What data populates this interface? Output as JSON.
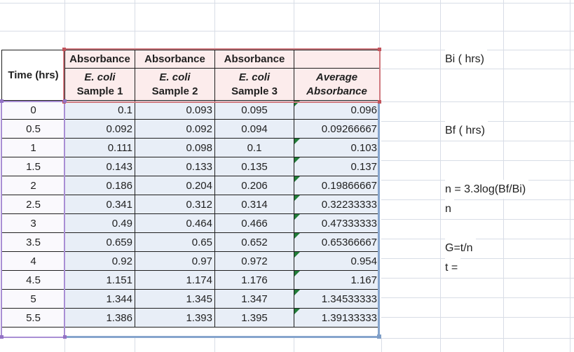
{
  "sheet": {
    "header": {
      "time_label": "Time (hrs)",
      "value_cols": [
        {
          "top": "Absorbance",
          "line1": "E. coli",
          "line2": "Sample 1"
        },
        {
          "top": "Absorbance",
          "line1": "E. coli",
          "line2": "Sample 2"
        },
        {
          "top": "Absorbance",
          "line1": "E. coli",
          "line2": "Sample 3"
        },
        {
          "top": "",
          "line1": "Average",
          "line2": "Absorbance"
        }
      ]
    },
    "rows": [
      {
        "time": "0",
        "s1": "0.1",
        "s2": "0.093",
        "s3": "0.095",
        "avg": "0.096",
        "flag": true
      },
      {
        "time": "0.5",
        "s1": "0.092",
        "s2": "0.092",
        "s3": "0.094",
        "avg": "0.09266667",
        "flag": false
      },
      {
        "time": "1",
        "s1": "0.111",
        "s2": "0.098",
        "s3": "0.1",
        "avg": "0.103",
        "flag": true
      },
      {
        "time": "1.5",
        "s1": "0.143",
        "s2": "0.133",
        "s3": "0.135",
        "avg": "0.137",
        "flag": true
      },
      {
        "time": "2",
        "s1": "0.186",
        "s2": "0.204",
        "s3": "0.206",
        "avg": "0.19866667",
        "flag": true
      },
      {
        "time": "2.5",
        "s1": "0.341",
        "s2": "0.312",
        "s3": "0.314",
        "avg": "0.32233333",
        "flag": true
      },
      {
        "time": "3",
        "s1": "0.49",
        "s2": "0.464",
        "s3": "0.466",
        "avg": "0.47333333",
        "flag": true
      },
      {
        "time": "3.5",
        "s1": "0.659",
        "s2": "0.65",
        "s3": "0.652",
        "avg": "0.65366667",
        "flag": true
      },
      {
        "time": "4",
        "s1": "0.92",
        "s2": "0.97",
        "s3": "0.972",
        "avg": "0.954",
        "flag": true
      },
      {
        "time": "4.5",
        "s1": "1.151",
        "s2": "1.174",
        "s3": "1.176",
        "avg": "1.167",
        "flag": true
      },
      {
        "time": "5",
        "s1": "1.344",
        "s2": "1.345",
        "s3": "1.347",
        "avg": "1.34533333",
        "flag": true
      },
      {
        "time": "5.5",
        "s1": "1.386",
        "s2": "1.393",
        "s3": "1.395",
        "avg": "1.39133333",
        "flag": true
      }
    ],
    "side_labels": [
      {
        "text": "Bi ( hrs)"
      },
      {
        "text": "Bf ( hrs)"
      },
      {
        "text": "n = 3.3log(Bf/Bi)"
      },
      {
        "text": "n"
      },
      {
        "text": "G=t/n"
      },
      {
        "text": "t ="
      }
    ]
  },
  "colors": {
    "header_fill": "#fcecec",
    "data_fill": "#e8eef7",
    "time_fill": "#faf9fd",
    "grid": "#d8dde6",
    "cell_border": "#1f1f1f",
    "red_border": "#d0797f",
    "red_handle": "#c2535b",
    "purple_border": "#a98fd4",
    "purple_handle": "#9372c5",
    "blue_border": "#86a5cd",
    "blue_handle": "#7e9ec7",
    "flag_green": "#217c38"
  }
}
